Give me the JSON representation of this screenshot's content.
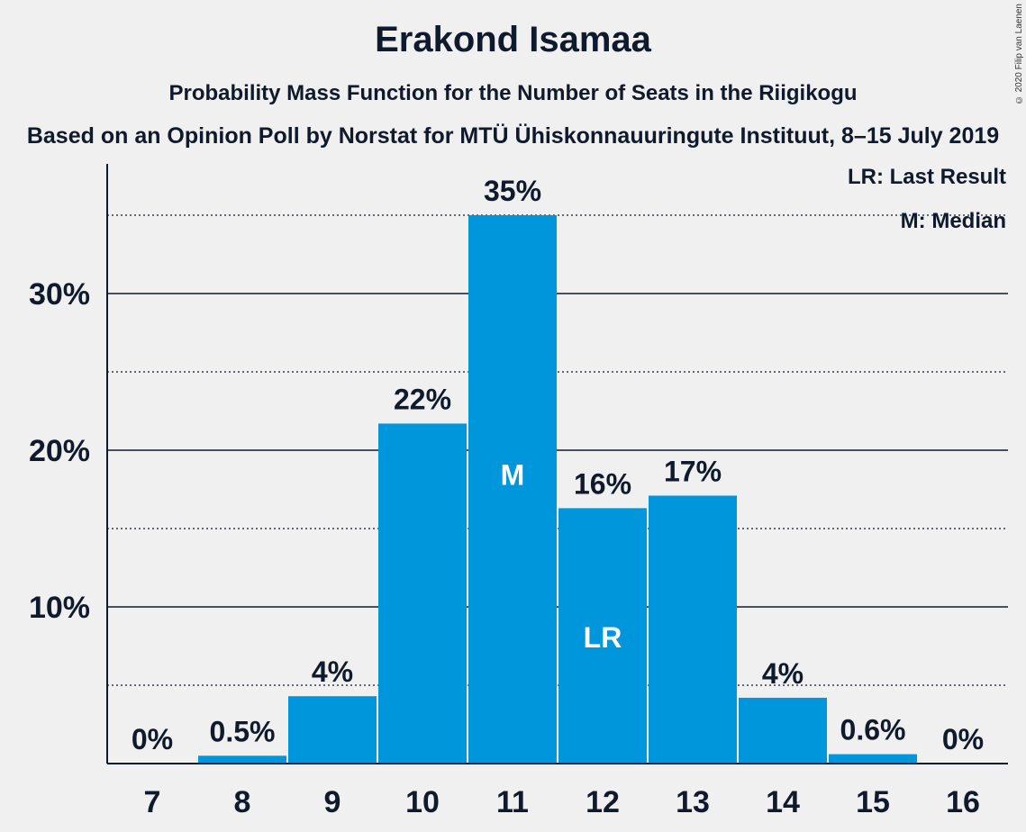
{
  "title": "Erakond Isamaa",
  "subtitle": "Probability Mass Function for the Number of Seats in the Riigikogu",
  "source": "Based on an Opinion Poll by Norstat for MTÜ Ühiskonnauuringute Instituut, 8–15 July 2019",
  "copyright": "© 2020 Filip van Laenen",
  "legend": {
    "last_result": "LR: Last Result",
    "median": "M: Median"
  },
  "colors": {
    "bar": "#0096db",
    "background": "#f0f0f0",
    "text": "#0f1a2c"
  },
  "chart_data": {
    "type": "bar",
    "categories": [
      "7",
      "8",
      "9",
      "10",
      "11",
      "12",
      "13",
      "14",
      "15",
      "16"
    ],
    "values": [
      0,
      0.5,
      4.3,
      21.7,
      35.0,
      16.3,
      17.1,
      4.2,
      0.6,
      0
    ],
    "value_labels": [
      "0%",
      "0.5%",
      "4%",
      "22%",
      "35%",
      "16%",
      "17%",
      "4%",
      "0.6%",
      "0%"
    ],
    "bar_markers": [
      {
        "category": "11",
        "label": "M"
      },
      {
        "category": "12",
        "label": "LR"
      }
    ],
    "y_ticks": [
      10,
      20,
      30
    ],
    "y_tick_labels": [
      "10%",
      "20%",
      "30%"
    ],
    "y_dotted_lines": [
      5,
      15,
      25,
      35
    ],
    "ylim": [
      0,
      38
    ],
    "grid": true,
    "legend_position": "top-right"
  }
}
